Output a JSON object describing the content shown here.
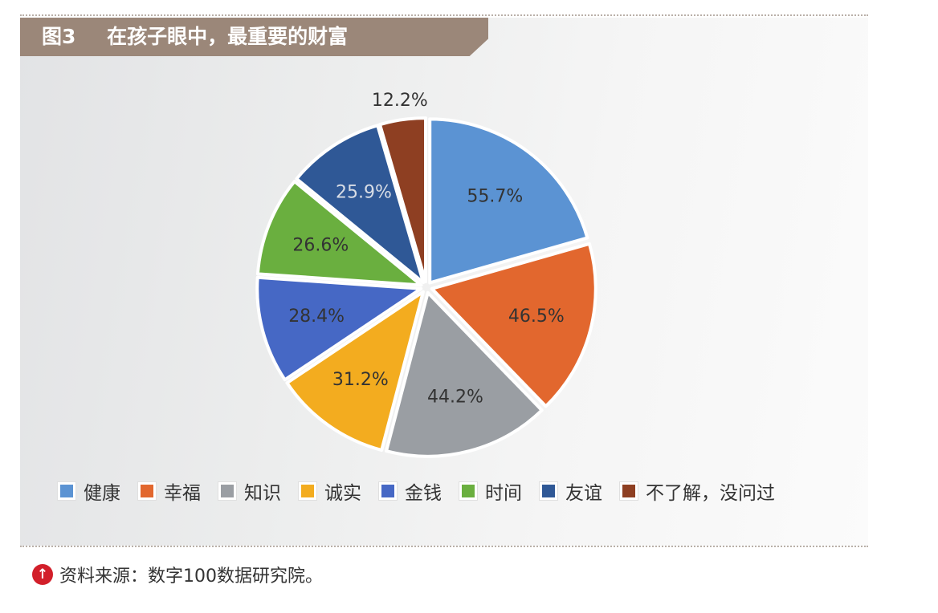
{
  "figure": {
    "number": "图3",
    "title": "在孩子眼中，最重要的财富"
  },
  "chart_data": {
    "type": "pie",
    "categories": [
      "健康",
      "幸福",
      "知识",
      "诚实",
      "金钱",
      "时间",
      "友谊",
      "不了解，没问过"
    ],
    "values": [
      55.7,
      46.5,
      44.2,
      31.2,
      28.4,
      26.6,
      25.9,
      12.2
    ],
    "labels": [
      "55.7%",
      "46.5%",
      "44.2%",
      "31.2%",
      "28.4%",
      "26.6%",
      "25.9%",
      "12.2%"
    ],
    "colors": [
      "#5b93d3",
      "#e2672e",
      "#9a9ea3",
      "#f3ac1f",
      "#4668c5",
      "#6aaf3f",
      "#2f5896",
      "#8e3f22"
    ],
    "legend_position": "bottom",
    "start": "top, clockwise"
  },
  "source": {
    "icon": "up-arrow-icon",
    "text": "资料来源：数字100数据研究院。"
  }
}
